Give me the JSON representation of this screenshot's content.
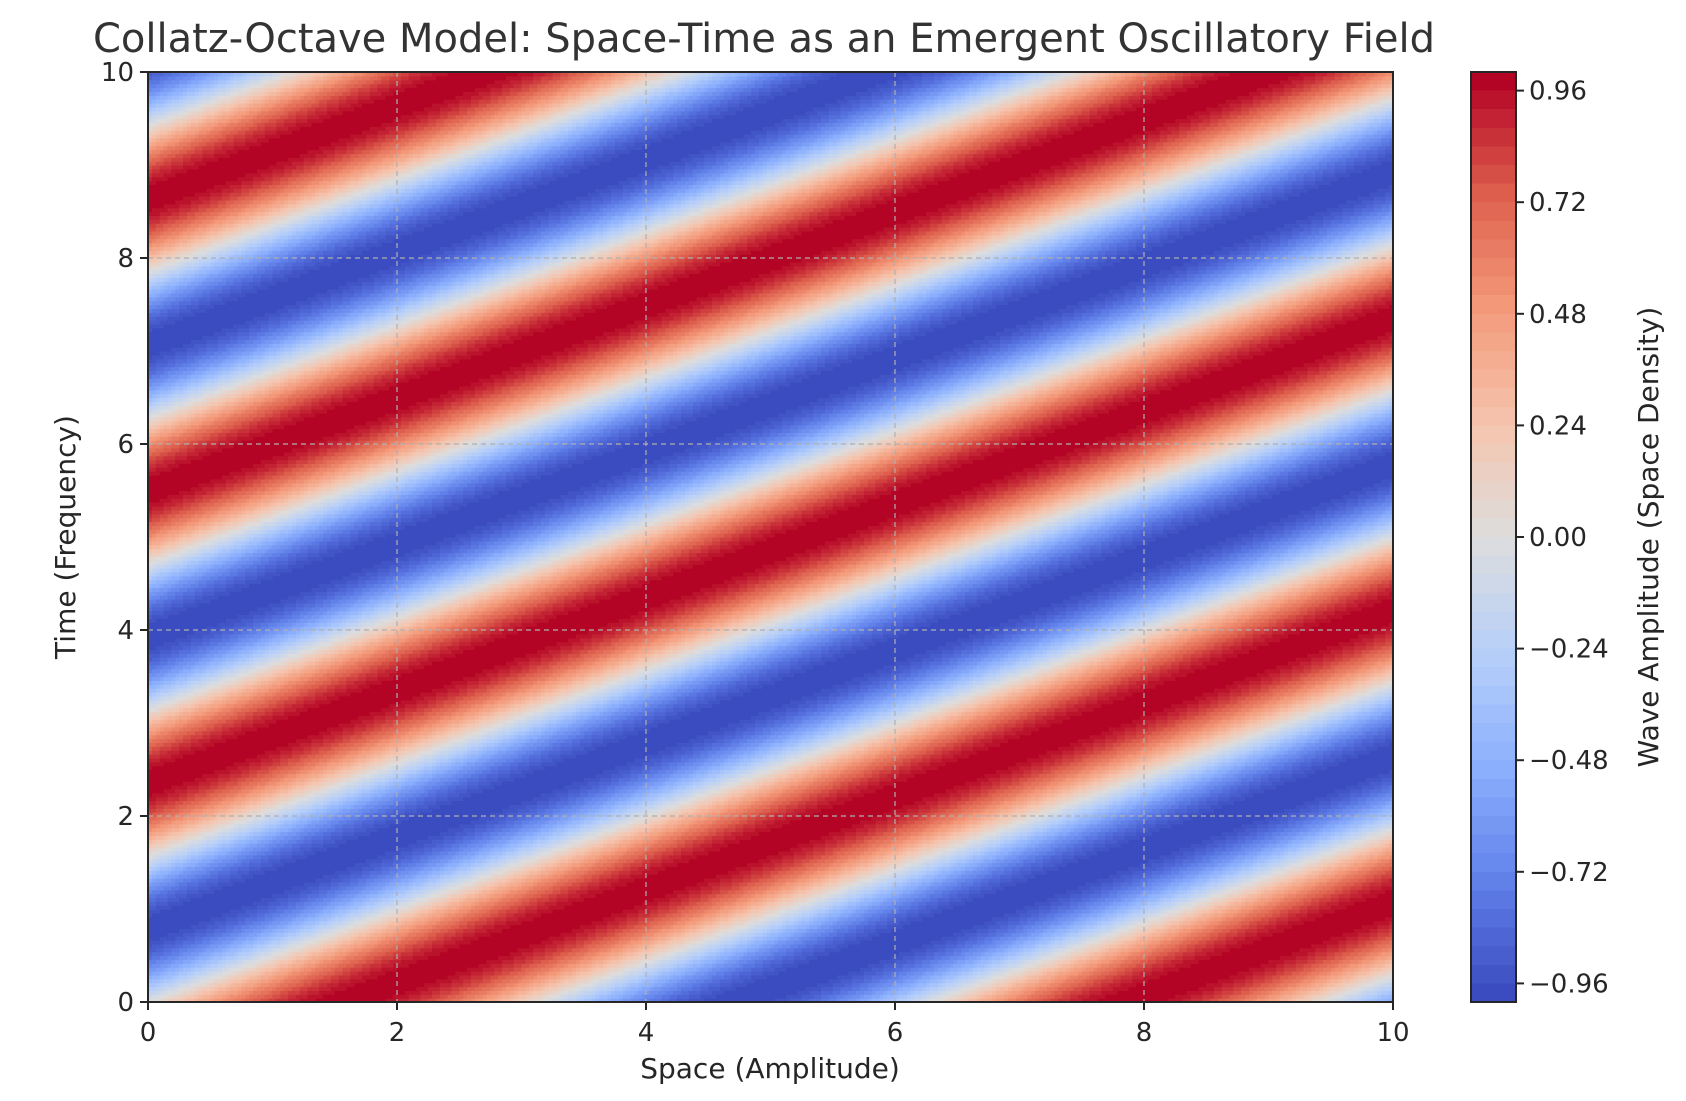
{
  "chart_data": {
    "type": "heatmap",
    "title": "Collatz-Octave Model: Space-Time as an Emergent Oscillatory Field",
    "xlabel": "Space (Amplitude)",
    "ylabel": "Time (Frequency)",
    "colorbar_label": "Wave Amplitude (Space Density)",
    "colormap": "coolwarm",
    "xlim": [
      0,
      10
    ],
    "ylim": [
      0,
      10
    ],
    "x_ticks": [
      0,
      2,
      4,
      6,
      8,
      10
    ],
    "y_ticks": [
      0,
      2,
      4,
      6,
      8,
      10
    ],
    "x_tick_labels": [
      "0",
      "2",
      "4",
      "6",
      "8",
      "10"
    ],
    "y_tick_labels": [
      "0",
      "2",
      "4",
      "6",
      "8",
      "10"
    ],
    "colorbar_range": [
      -1.0,
      1.0
    ],
    "colorbar_ticks": [
      0.96,
      0.72,
      0.48,
      0.24,
      0.0,
      -0.24,
      -0.48,
      -0.72,
      -0.96
    ],
    "colorbar_tick_labels": [
      "0.96",
      "0.72",
      "0.48",
      "0.24",
      "0.00",
      "−0.24",
      "−0.48",
      "−0.72",
      "−0.96"
    ],
    "field": {
      "function": "sin(x - 2y)",
      "x_range": [
        0,
        10
      ],
      "y_range": [
        0,
        10
      ],
      "contour_levels": 50
    },
    "grid": true,
    "colors": {
      "low": "#3b4cc0",
      "mid": "#dddddd",
      "high": "#b40426"
    }
  }
}
